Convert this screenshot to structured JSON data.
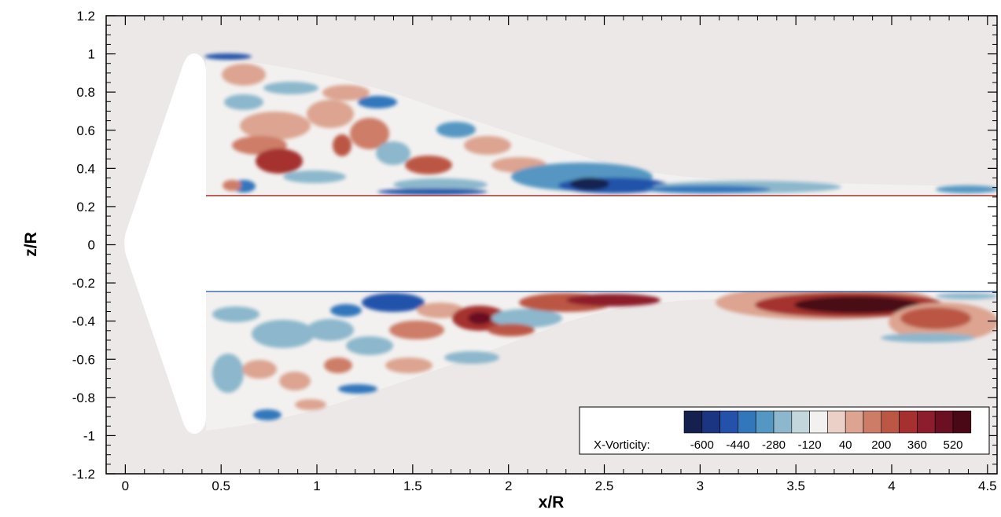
{
  "chart_data": {
    "type": "heatmap",
    "title": "",
    "xlabel": "x/R",
    "ylabel": "z/R",
    "xlim": [
      -0.1,
      4.55
    ],
    "ylim": [
      -1.2,
      1.2
    ],
    "xticks": [
      "0",
      "0.5",
      "1",
      "1.5",
      "2",
      "2.5",
      "3",
      "3.5",
      "4",
      "4.5"
    ],
    "yticks": [
      "1.2",
      "1",
      "0.8",
      "0.6",
      "0.4",
      "0.2",
      "0",
      "-0.2",
      "-0.4",
      "-0.6",
      "-0.8",
      "-1",
      "-1.2"
    ],
    "background_color": "#ede8e8",
    "colorbar": {
      "label": "X-Vorticity:",
      "tick_labels": [
        "-600",
        "-440",
        "-280",
        "-120",
        "40",
        "200",
        "360",
        "520"
      ],
      "colors": [
        "#15204f",
        "#1c3582",
        "#2452aa",
        "#3276bc",
        "#5497c2",
        "#8cb7cc",
        "#c2d6dc",
        "#f3f1f0",
        "#ead0c6",
        "#dca491",
        "#cd7d67",
        "#bb5744",
        "#a5302f",
        "#8d1c2c",
        "#6b1022",
        "#4a0716"
      ],
      "placement": "bottom-right"
    },
    "features": [
      {
        "kind": "blade-surface",
        "x": [
          0.0,
          0.42
        ],
        "z": [
          -1.0,
          1.0
        ]
      },
      {
        "kind": "hub-region",
        "x": [
          0.42,
          4.55
        ],
        "z": [
          -0.25,
          0.25
        ]
      },
      {
        "kind": "vortex",
        "sign": "negative",
        "x": 2.4,
        "z": 0.3
      },
      {
        "kind": "vortex",
        "sign": "positive",
        "x": 3.9,
        "z": -0.36
      },
      {
        "kind": "vortex",
        "sign": "positive",
        "x": 1.85,
        "z": -0.38
      },
      {
        "kind": "vortex",
        "sign": "positive",
        "x": 0.8,
        "z": 0.42
      }
    ]
  }
}
